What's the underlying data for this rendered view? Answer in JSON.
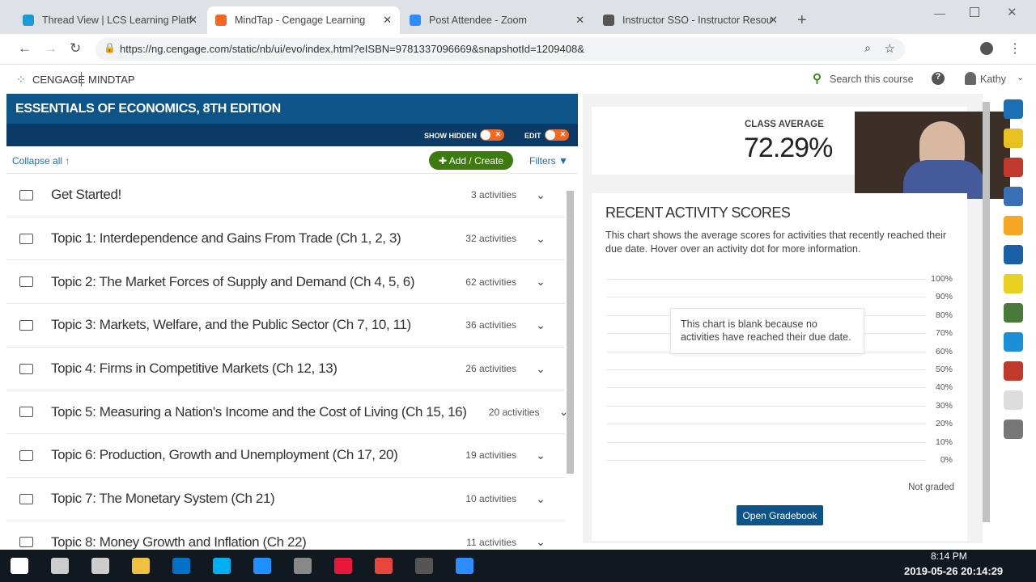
{
  "browser": {
    "tabs": [
      {
        "title": "Thread View | LCS Learning Platf",
        "color": "#1a9ad6"
      },
      {
        "title": "MindTap - Cengage Learning",
        "color": "#f26722",
        "active": true
      },
      {
        "title": "Post Attendee - Zoom",
        "color": "#2d8cff"
      },
      {
        "title": "Instructor SSO - Instructor Resou",
        "color": "#555"
      }
    ],
    "url": "https://ng.cengage.com/static/nb/ui/evo/index.html?eISBN=9781337096669&snapshotId=1209408&"
  },
  "header": {
    "brand": "CENGAGE",
    "product": "MINDTAP",
    "search": "Search this course",
    "user": "Kathy"
  },
  "book": {
    "title": "ESSENTIALS OF ECONOMICS, 8TH EDITION",
    "show_hidden": "SHOW HIDDEN",
    "edit": "EDIT",
    "collapse_all": "Collapse all",
    "add_create": "Add / Create",
    "filters": "Filters",
    "units": [
      {
        "title": "Get Started!",
        "count": "3 activities"
      },
      {
        "title": "Topic 1: Interdependence and Gains From Trade (Ch 1, 2, 3)",
        "count": "32 activities"
      },
      {
        "title": "Topic 2: The Market Forces of Supply and Demand (Ch 4, 5, 6)",
        "count": "62 activities"
      },
      {
        "title": "Topic 3: Markets, Welfare, and the Public Sector (Ch 7, 10, 11)",
        "count": "36 activities"
      },
      {
        "title": "Topic 4: Firms in Competitive Markets (Ch 12, 13)",
        "count": "26 activities"
      },
      {
        "title": "Topic 5: Measuring a Nation's Income and the Cost of Living (Ch 15, 16)",
        "count": "20 activities"
      },
      {
        "title": "Topic 6: Production, Growth and Unemployment (Ch 17, 20)",
        "count": "19 activities"
      },
      {
        "title": "Topic 7: The Monetary System (Ch 21)",
        "count": "10 activities"
      },
      {
        "title": "Topic 8: Money Growth and Inflation (Ch 22)",
        "count": "11 activities"
      }
    ]
  },
  "class_avg": {
    "label": "CLASS AVERAGE",
    "value": "72.29%"
  },
  "recent": {
    "title": "RECENT ACTIVITY SCORES",
    "desc": "This chart shows the average scores for activities that recently reached their due date. Hover over an activity dot for more information.",
    "blank": "This chart is blank because no activities have reached their due date.",
    "yticks": [
      "100%",
      "90%",
      "80%",
      "70%",
      "60%",
      "50%",
      "40%",
      "30%",
      "20%",
      "10%",
      "0%"
    ],
    "not_graded": "Not graded",
    "open_gradebook": "Open Gradebook"
  },
  "taskbar": {
    "time": "8:14 PM",
    "stamp": "2019-05-26 20:14:29"
  }
}
